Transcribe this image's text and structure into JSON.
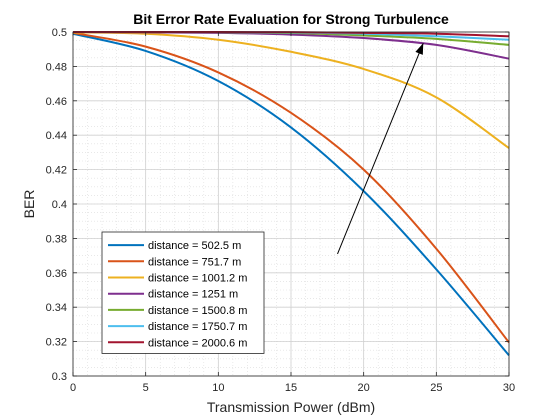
{
  "chart_data": {
    "type": "line",
    "title": "Bit Error Rate Evaluation for Strong Turbulence",
    "xlabel": "Transmission Power (dBm)",
    "ylabel": "BER",
    "xlim": [
      0,
      30
    ],
    "ylim": [
      0.3,
      0.5
    ],
    "xticks": [
      0,
      5,
      10,
      15,
      20,
      25,
      30
    ],
    "yticks": [
      0.3,
      0.32,
      0.34,
      0.36,
      0.38,
      0.4,
      0.42,
      0.44,
      0.46,
      0.48,
      0.5
    ],
    "xtick_labels": [
      "0",
      "5",
      "10",
      "15",
      "20",
      "25",
      "30"
    ],
    "ytick_labels": [
      "0.3",
      "0.32",
      "0.34",
      "0.36",
      "0.38",
      "0.4",
      "0.42",
      "0.44",
      "0.46",
      "0.48",
      "0.5"
    ],
    "grid": true,
    "minor_grid": true,
    "legend_position": "bottom-left",
    "x": [
      0,
      5,
      10,
      15,
      20,
      25,
      30
    ],
    "series": [
      {
        "name": "distance = 502.5 m",
        "color": "#0072BD",
        "values": [
          0.499,
          0.489,
          0.4715,
          0.4445,
          0.4075,
          0.362,
          0.312
        ]
      },
      {
        "name": "distance = 751.7 m",
        "color": "#D95319",
        "values": [
          0.4995,
          0.4915,
          0.4765,
          0.453,
          0.42,
          0.374,
          0.3195
        ]
      },
      {
        "name": "distance = 1001.2 m",
        "color": "#EDB120",
        "values": [
          0.4998,
          0.499,
          0.4955,
          0.4885,
          0.4785,
          0.462,
          0.4325
        ]
      },
      {
        "name": "distance = 1251 m",
        "color": "#7E2F8E",
        "values": [
          0.5,
          0.4998,
          0.4995,
          0.4985,
          0.4965,
          0.4925,
          0.4845
        ]
      },
      {
        "name": "distance = 1500.8 m",
        "color": "#77AC30",
        "values": [
          0.5,
          0.5,
          0.4999,
          0.4994,
          0.498,
          0.496,
          0.4925
        ]
      },
      {
        "name": "distance = 1750.7 m",
        "color": "#4DBEEE",
        "values": [
          0.5,
          0.5,
          0.5,
          0.4997,
          0.499,
          0.4975,
          0.4955
        ]
      },
      {
        "name": "distance = 2000.6 m",
        "color": "#A2142F",
        "values": [
          0.5,
          0.5,
          0.5,
          0.4999,
          0.4995,
          0.499,
          0.4975
        ]
      }
    ],
    "annotations": [
      {
        "type": "arrow",
        "from": [
          18.2,
          0.371
        ],
        "to": [
          24.1,
          0.4935
        ],
        "color": "#000000"
      }
    ]
  }
}
